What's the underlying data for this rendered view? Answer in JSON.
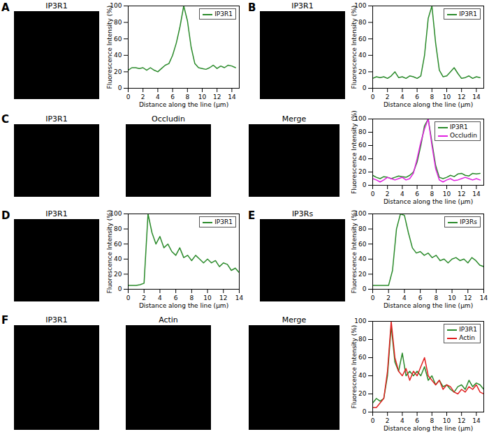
{
  "chart_data": [
    {
      "type": "line",
      "panel": "A",
      "images": [
        "IP3R1"
      ],
      "x_label": "Distance along the line (µm)",
      "y_label": "Fluorescence Intensity (%)",
      "x": [
        0,
        0.5,
        1,
        1.5,
        2,
        2.5,
        3,
        3.5,
        4,
        4.5,
        5,
        5.5,
        6,
        6.5,
        7,
        7.5,
        8,
        8.5,
        9,
        9.5,
        10,
        10.5,
        11,
        11.5,
        12,
        12.5,
        13,
        13.5,
        14,
        14.5
      ],
      "series": [
        {
          "name": "IP3R1",
          "color": "#2a8a2a",
          "values": [
            22,
            25,
            25,
            24,
            25,
            22,
            25,
            22,
            20,
            24,
            28,
            30,
            40,
            55,
            75,
            100,
            82,
            50,
            30,
            25,
            24,
            23,
            25,
            28,
            24,
            27,
            25,
            28,
            27,
            25
          ]
        }
      ],
      "xlim": [
        0,
        15
      ],
      "xticks": [
        0,
        2,
        4,
        6,
        8,
        10,
        12,
        14
      ],
      "ylim": [
        0,
        100
      ],
      "yticks": [
        0,
        20,
        40,
        60,
        80,
        100
      ],
      "legend": "upper right"
    },
    {
      "type": "line",
      "panel": "B",
      "images": [
        "IP3R1"
      ],
      "x_label": "Distance along the line (µm)",
      "y_label": "Fluorescence Intensity (%)",
      "x": [
        0,
        0.5,
        1,
        1.5,
        2,
        2.5,
        3,
        3.5,
        4,
        4.5,
        5,
        5.5,
        6,
        6.5,
        7,
        7.5,
        8,
        8.5,
        9,
        9.5,
        10,
        10.5,
        11,
        11.5,
        12,
        12.5,
        13,
        13.5,
        14,
        14.5
      ],
      "series": [
        {
          "name": "IP3R1",
          "color": "#2a8a2a",
          "values": [
            12,
            14,
            13,
            14,
            12,
            15,
            20,
            13,
            14,
            12,
            15,
            14,
            12,
            15,
            40,
            85,
            100,
            55,
            22,
            14,
            15,
            20,
            25,
            18,
            12,
            13,
            15,
            12,
            14,
            13
          ]
        }
      ],
      "xlim": [
        0,
        15
      ],
      "xticks": [
        0,
        2,
        4,
        6,
        8,
        10,
        12,
        14
      ],
      "ylim": [
        0,
        100
      ],
      "yticks": [
        0,
        20,
        40,
        60,
        80,
        100
      ],
      "legend": "upper right"
    },
    {
      "type": "line",
      "panel": "C",
      "images": [
        "IP3R1",
        "Occludin",
        "Merge"
      ],
      "x_label": "Distance along the line (µm)",
      "y_label": "Fluorescence Intensity (%)",
      "x": [
        0,
        0.5,
        1,
        1.5,
        2,
        2.5,
        3,
        3.5,
        4,
        4.5,
        5,
        5.5,
        6,
        6.5,
        7,
        7.5,
        8,
        8.5,
        9,
        9.5,
        10,
        10.5,
        11,
        11.5,
        12,
        12.5,
        13,
        13.5,
        14,
        14.5
      ],
      "series": [
        {
          "name": "IP3R1",
          "color": "#2a8a2a",
          "values": [
            15,
            12,
            10,
            13,
            12,
            10,
            12,
            14,
            13,
            12,
            15,
            20,
            35,
            60,
            90,
            100,
            65,
            30,
            12,
            10,
            12,
            15,
            13,
            17,
            18,
            15,
            14,
            18,
            17,
            18
          ]
        },
        {
          "name": "Occludin",
          "color": "#e020e0",
          "values": [
            10,
            8,
            5,
            8,
            12,
            10,
            8,
            10,
            12,
            8,
            10,
            18,
            40,
            65,
            85,
            100,
            60,
            25,
            8,
            5,
            8,
            10,
            7,
            8,
            10,
            12,
            10,
            8,
            10,
            8
          ]
        }
      ],
      "xlim": [
        0,
        15
      ],
      "xticks": [
        0,
        2,
        4,
        6,
        8,
        10,
        12,
        14
      ],
      "ylim": [
        0,
        100
      ],
      "yticks": [
        0,
        20,
        40,
        60,
        80,
        100
      ],
      "legend": "upper right"
    },
    {
      "type": "line",
      "panel": "D",
      "images": [
        "IP3R1"
      ],
      "x_label": "Distance along the line (µm)",
      "y_label": "Fluorescence Intensity (%)",
      "x": [
        0,
        0.5,
        1,
        1.5,
        2,
        2.5,
        3,
        3.5,
        4,
        4.5,
        5,
        5.5,
        6,
        6.5,
        7,
        7.5,
        8,
        8.5,
        9,
        9.5,
        10,
        10.5,
        11,
        11.5,
        12,
        12.5,
        13,
        13.5,
        14
      ],
      "series": [
        {
          "name": "IP3R1",
          "color": "#2a8a2a",
          "values": [
            5,
            5,
            5,
            6,
            8,
            100,
            75,
            60,
            70,
            55,
            60,
            50,
            45,
            55,
            42,
            45,
            38,
            45,
            40,
            35,
            40,
            35,
            38,
            30,
            35,
            33,
            25,
            28,
            22
          ]
        }
      ],
      "xlim": [
        0,
        14
      ],
      "xticks": [
        0,
        2,
        4,
        6,
        8,
        10,
        12,
        14
      ],
      "ylim": [
        0,
        100
      ],
      "yticks": [
        0,
        20,
        40,
        60,
        80,
        100
      ],
      "legend": "upper right"
    },
    {
      "type": "line",
      "panel": "E",
      "images": [
        "IP3Rs"
      ],
      "x_label": "Distance along the line (µm)",
      "y_label": "Fluorescence Intensity (%)",
      "x": [
        0,
        0.5,
        1,
        1.5,
        2,
        2.5,
        3,
        3.5,
        4,
        4.5,
        5,
        5.5,
        6,
        6.5,
        7,
        7.5,
        8,
        8.5,
        9,
        9.5,
        10,
        10.5,
        11,
        11.5,
        12,
        12.5,
        13,
        13.5,
        14
      ],
      "series": [
        {
          "name": "IP3Rs",
          "color": "#2a8a2a",
          "values": [
            5,
            5,
            5,
            5,
            5,
            25,
            80,
            100,
            98,
            75,
            55,
            48,
            50,
            45,
            48,
            42,
            45,
            38,
            40,
            35,
            40,
            42,
            38,
            40,
            35,
            42,
            38,
            32,
            30
          ]
        }
      ],
      "xlim": [
        0,
        14
      ],
      "xticks": [
        0,
        2,
        4,
        6,
        8,
        10,
        12,
        14
      ],
      "ylim": [
        0,
        100
      ],
      "yticks": [
        0,
        20,
        40,
        60,
        80,
        100
      ],
      "legend": "upper right"
    },
    {
      "type": "line",
      "panel": "F",
      "images": [
        "IP3R1",
        "Actin",
        "Merge"
      ],
      "x_label": "Distance along the line (µm)",
      "y_label": "Fluorescence Intensity (%)",
      "x": [
        0,
        0.5,
        1,
        1.5,
        2,
        2.5,
        3,
        3.5,
        4,
        4.5,
        5,
        5.5,
        6,
        6.5,
        7,
        7.5,
        8,
        8.5,
        9,
        9.5,
        10,
        10.5,
        11,
        11.5,
        12,
        12.5,
        13,
        13.5,
        14,
        14.5,
        15
      ],
      "series": [
        {
          "name": "IP3R1",
          "color": "#2a8a2a",
          "values": [
            10,
            15,
            12,
            15,
            40,
            95,
            55,
            45,
            65,
            40,
            45,
            40,
            45,
            40,
            50,
            35,
            40,
            30,
            35,
            28,
            30,
            25,
            22,
            28,
            30,
            25,
            35,
            28,
            32,
            30,
            25
          ]
        },
        {
          "name": "Actin",
          "color": "#e02020",
          "values": [
            5,
            5,
            10,
            15,
            45,
            100,
            60,
            45,
            40,
            48,
            35,
            45,
            40,
            50,
            60,
            40,
            35,
            30,
            35,
            25,
            30,
            28,
            22,
            20,
            25,
            22,
            28,
            25,
            30,
            22,
            20
          ]
        }
      ],
      "xlim": [
        0,
        15
      ],
      "xticks": [
        0,
        2,
        4,
        6,
        8,
        10,
        12,
        14
      ],
      "ylim": [
        0,
        100
      ],
      "yticks": [
        0,
        20,
        40,
        60,
        80,
        100
      ],
      "legend": "upper right"
    }
  ]
}
